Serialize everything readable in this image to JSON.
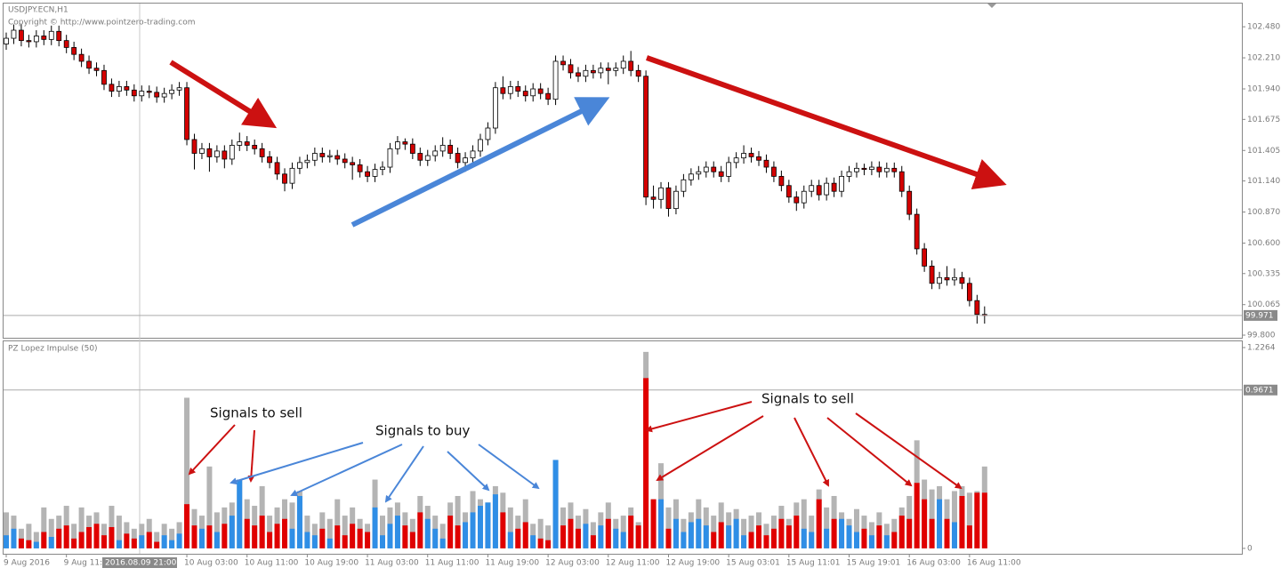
{
  "chart_data": [
    {
      "type": "candlestick",
      "title": "USDJPY.ECN,H1",
      "subtitle": "Copyright © http://www.pointzero-trading.com",
      "crosshair_label": "2016.08.09 21:00",
      "last_price": 99.971,
      "categories": [
        "9 Aug 2016",
        null,
        null,
        null,
        null,
        null,
        null,
        null,
        "9 Aug 11:00",
        null,
        null,
        null,
        null,
        null,
        null,
        null,
        null,
        null,
        null,
        null,
        null,
        null,
        null,
        null,
        "10 Aug 03:00",
        null,
        null,
        null,
        null,
        null,
        null,
        null,
        "10 Aug 11:00",
        null,
        null,
        null,
        null,
        null,
        null,
        null,
        "10 Aug 19:00",
        null,
        null,
        null,
        null,
        null,
        null,
        null,
        "11 Aug 03:00",
        null,
        null,
        null,
        null,
        null,
        null,
        null,
        "11 Aug 11:00",
        null,
        null,
        null,
        null,
        null,
        null,
        null,
        "11 Aug 19:00",
        null,
        null,
        null,
        null,
        null,
        null,
        null,
        "12 Aug 03:00",
        null,
        null,
        null,
        null,
        null,
        null,
        null,
        "12 Aug 11:00",
        null,
        null,
        null,
        null,
        null,
        null,
        null,
        "12 Aug 19:00",
        null,
        null,
        null,
        null,
        null,
        null,
        null,
        "15 Aug 03:01",
        null,
        null,
        null,
        null,
        null,
        null,
        null,
        "15 Aug 11:01",
        null,
        null,
        null,
        null,
        null,
        null,
        null,
        "15 Aug 19:01",
        null,
        null,
        null,
        null,
        null,
        null,
        null,
        "16 Aug 03:00",
        null,
        null,
        null,
        null,
        null,
        null,
        null,
        "16 Aug 11:00",
        null,
        null
      ],
      "open": [
        102.33,
        102.38,
        102.45,
        102.36,
        102.35,
        102.4,
        102.37,
        102.44,
        102.36,
        102.3,
        102.24,
        102.18,
        102.12,
        102.1,
        101.98,
        101.92,
        101.96,
        101.93,
        101.88,
        101.92,
        101.91,
        101.87,
        101.9,
        101.93,
        101.95,
        101.5,
        101.38,
        101.42,
        101.35,
        101.4,
        101.33,
        101.45,
        101.48,
        101.45,
        101.42,
        101.35,
        101.3,
        101.2,
        101.12,
        101.25,
        101.3,
        101.32,
        101.38,
        101.35,
        101.36,
        101.33,
        101.3,
        101.28,
        101.22,
        101.18,
        101.24,
        101.26,
        101.42,
        101.48,
        101.46,
        101.38,
        101.32,
        101.36,
        101.4,
        101.45,
        101.38,
        101.3,
        101.34,
        101.4,
        101.5,
        101.6,
        101.95,
        101.9,
        101.96,
        101.92,
        101.88,
        101.94,
        101.9,
        101.85,
        102.18,
        102.15,
        102.08,
        102.05,
        102.1,
        102.08,
        102.12,
        102.1,
        102.12,
        102.18,
        102.1,
        102.05,
        101.0,
        100.98,
        101.08,
        100.9,
        101.05,
        101.15,
        101.2,
        101.22,
        101.26,
        101.22,
        101.18,
        101.3,
        101.34,
        101.38,
        101.35,
        101.32,
        101.26,
        101.18,
        101.1,
        101.0,
        100.95,
        101.05,
        101.1,
        101.02,
        101.12,
        101.05,
        101.18,
        101.22,
        101.25,
        101.24,
        101.26,
        101.22,
        101.25,
        101.22,
        101.05,
        100.85,
        100.55,
        100.4,
        100.25,
        100.3,
        100.28,
        100.3,
        100.25,
        100.1,
        99.98
      ],
      "high": [
        102.43,
        102.5,
        102.5,
        102.41,
        102.45,
        102.45,
        102.49,
        102.49,
        102.41,
        102.35,
        102.29,
        102.23,
        102.17,
        102.15,
        102.03,
        102.01,
        102.01,
        101.98,
        101.97,
        101.97,
        101.96,
        101.95,
        101.98,
        102.0,
        102.0,
        101.55,
        101.47,
        101.47,
        101.45,
        101.45,
        101.5,
        101.56,
        101.53,
        101.5,
        101.47,
        101.4,
        101.35,
        101.25,
        101.3,
        101.35,
        101.37,
        101.43,
        101.43,
        101.41,
        101.41,
        101.38,
        101.35,
        101.33,
        101.27,
        101.29,
        101.31,
        101.47,
        101.53,
        101.51,
        101.51,
        101.43,
        101.41,
        101.45,
        101.52,
        101.5,
        101.43,
        101.39,
        101.45,
        101.55,
        101.65,
        102.0,
        102.05,
        102.01,
        102.01,
        101.97,
        101.99,
        101.99,
        101.95,
        102.23,
        102.23,
        102.2,
        102.13,
        102.15,
        102.15,
        102.17,
        102.17,
        102.17,
        102.23,
        102.27,
        102.15,
        102.1,
        101.1,
        101.13,
        101.13,
        101.1,
        101.2,
        101.25,
        101.27,
        101.31,
        101.31,
        101.27,
        101.35,
        101.39,
        101.45,
        101.43,
        101.4,
        101.37,
        101.31,
        101.23,
        101.15,
        101.05,
        101.1,
        101.15,
        101.15,
        101.17,
        101.17,
        101.23,
        101.27,
        101.3,
        101.29,
        101.31,
        101.31,
        101.3,
        101.3,
        101.27,
        101.1,
        100.9,
        100.6,
        100.45,
        100.35,
        100.4,
        100.38,
        100.35,
        100.3,
        100.15,
        100.05
      ],
      "low": [
        102.28,
        102.33,
        102.31,
        102.3,
        102.3,
        102.32,
        102.32,
        102.31,
        102.25,
        102.19,
        102.13,
        102.07,
        102.05,
        101.93,
        101.87,
        101.87,
        101.88,
        101.83,
        101.83,
        101.86,
        101.82,
        101.82,
        101.85,
        101.88,
        101.45,
        101.24,
        101.33,
        101.22,
        101.3,
        101.25,
        101.28,
        101.4,
        101.4,
        101.37,
        101.3,
        101.25,
        101.15,
        101.05,
        101.07,
        101.2,
        101.25,
        101.27,
        101.3,
        101.3,
        101.28,
        101.25,
        101.15,
        101.17,
        101.13,
        101.13,
        101.19,
        101.21,
        101.37,
        101.41,
        101.33,
        101.27,
        101.27,
        101.31,
        101.35,
        101.33,
        101.25,
        101.22,
        101.29,
        101.35,
        101.45,
        101.55,
        101.85,
        101.85,
        101.87,
        101.83,
        101.83,
        101.85,
        101.8,
        101.8,
        102.1,
        102.03,
        102.0,
        102.0,
        102.03,
        102.03,
        101.98,
        102.05,
        102.07,
        102.05,
        102.0,
        100.93,
        100.9,
        100.9,
        100.83,
        100.85,
        101.0,
        101.1,
        101.15,
        101.17,
        101.17,
        101.13,
        101.13,
        101.25,
        101.29,
        101.3,
        101.27,
        101.21,
        101.13,
        101.05,
        100.95,
        100.88,
        100.9,
        101.0,
        100.97,
        100.97,
        101.0,
        101.0,
        101.13,
        101.17,
        101.19,
        101.19,
        101.17,
        101.17,
        101.17,
        101.0,
        100.8,
        100.5,
        100.35,
        100.2,
        100.2,
        100.23,
        100.23,
        100.2,
        100.05,
        99.9,
        99.9
      ],
      "close": [
        102.38,
        102.45,
        102.36,
        102.35,
        102.4,
        102.37,
        102.44,
        102.36,
        102.3,
        102.24,
        102.18,
        102.12,
        102.1,
        101.98,
        101.92,
        101.96,
        101.93,
        101.88,
        101.92,
        101.91,
        101.87,
        101.9,
        101.93,
        101.95,
        101.5,
        101.38,
        101.42,
        101.35,
        101.4,
        101.33,
        101.45,
        101.48,
        101.45,
        101.42,
        101.35,
        101.3,
        101.2,
        101.12,
        101.25,
        101.3,
        101.32,
        101.38,
        101.35,
        101.36,
        101.33,
        101.3,
        101.28,
        101.22,
        101.18,
        101.24,
        101.26,
        101.42,
        101.48,
        101.46,
        101.38,
        101.32,
        101.36,
        101.4,
        101.45,
        101.38,
        101.3,
        101.34,
        101.4,
        101.5,
        101.6,
        101.95,
        101.9,
        101.96,
        101.92,
        101.88,
        101.94,
        101.9,
        101.85,
        102.18,
        102.15,
        102.08,
        102.05,
        102.1,
        102.08,
        102.12,
        102.1,
        102.12,
        102.18,
        102.1,
        102.05,
        101.0,
        100.98,
        101.08,
        100.9,
        101.05,
        101.15,
        101.2,
        101.22,
        101.26,
        101.22,
        101.18,
        101.3,
        101.34,
        101.38,
        101.35,
        101.32,
        101.26,
        101.18,
        101.1,
        101.0,
        100.95,
        101.05,
        101.1,
        101.02,
        101.12,
        101.05,
        101.18,
        101.22,
        101.25,
        101.24,
        101.26,
        101.22,
        101.25,
        101.22,
        101.05,
        100.85,
        100.55,
        100.4,
        100.25,
        100.3,
        100.28,
        100.3,
        100.25,
        100.1,
        99.98,
        99.97
      ],
      "up_color": "#ffffff",
      "down_color": "#d40000",
      "ylim": [
        99.777,
        102.674
      ],
      "yticks": [
        {
          "value": 102.48,
          "label": "102.480"
        },
        {
          "value": 102.21,
          "label": "102.210"
        },
        {
          "value": 101.94,
          "label": "101.940"
        },
        101.675,
        101.405,
        {
          "value": 101.14,
          "label": "101.140"
        },
        {
          "value": 100.87,
          "label": "100.870"
        },
        {
          "value": 100.6,
          "label": "100.600"
        },
        100.335,
        100.065,
        {
          "value": 99.8,
          "label": "99.800"
        }
      ]
    },
    {
      "type": "bar",
      "title": "PZ Lopez Impulse (50)",
      "series": [
        {
          "color": "#b4b4b4",
          "values": [
            0.22,
            0.2,
            0.12,
            0.15,
            0.1,
            0.25,
            0.18,
            0.2,
            0.26,
            0.15,
            0.25,
            0.2,
            0.22,
            0.15,
            0.26,
            0.2,
            0.16,
            0.12,
            0.15,
            0.18,
            0.1,
            0.15,
            0.12,
            0.16,
            0.92,
            0.24,
            0.2,
            0.5,
            0.22,
            0.25,
            0.28,
            0.42,
            0.3,
            0.26,
            0.38,
            0.2,
            0.25,
            0.3,
            0.28,
            0.35,
            0.2,
            0.15,
            0.22,
            0.18,
            0.3,
            0.2,
            0.25,
            0.18,
            0.15,
            0.42,
            0.2,
            0.25,
            0.28,
            0.22,
            0.18,
            0.32,
            0.26,
            0.2,
            0.15,
            0.28,
            0.32,
            0.22,
            0.35,
            0.3,
            0.28,
            0.38,
            0.34,
            0.25,
            0.2,
            0.3,
            0.15,
            0.18,
            0.14,
            0.54,
            0.25,
            0.28,
            0.2,
            0.24,
            0.16,
            0.22,
            0.28,
            0.18,
            0.2,
            0.25,
            0.16,
            1.2,
            0.3,
            0.52,
            0.25,
            0.3,
            0.18,
            0.22,
            0.3,
            0.25,
            0.2,
            0.28,
            0.22,
            0.24,
            0.18,
            0.2,
            0.22,
            0.15,
            0.2,
            0.26,
            0.18,
            0.28,
            0.3,
            0.2,
            0.36,
            0.25,
            0.32,
            0.22,
            0.18,
            0.24,
            0.2,
            0.16,
            0.22,
            0.15,
            0.18,
            0.25,
            0.32,
            0.66,
            0.42,
            0.36,
            0.38,
            0.3,
            0.35,
            0.38,
            0.34,
            0.35,
            0.5
          ]
        },
        {
          "color": "#e00000",
          "values": [
            null,
            null,
            0.06,
            0.05,
            null,
            0.1,
            null,
            0.12,
            0.14,
            0.06,
            0.1,
            0.13,
            0.15,
            0.08,
            0.13,
            null,
            0.09,
            0.06,
            null,
            0.1,
            0.04,
            null,
            null,
            null,
            0.27,
            0.14,
            null,
            0.14,
            null,
            0.15,
            null,
            null,
            0.18,
            0.14,
            0.2,
            0.1,
            0.15,
            0.18,
            null,
            null,
            null,
            null,
            0.12,
            null,
            0.14,
            0.08,
            0.15,
            0.12,
            0.1,
            null,
            null,
            null,
            null,
            0.14,
            0.1,
            0.22,
            null,
            null,
            null,
            0.2,
            0.14,
            null,
            null,
            null,
            null,
            null,
            0.22,
            null,
            0.12,
            0.16,
            null,
            0.06,
            0.05,
            null,
            0.14,
            0.18,
            0.12,
            null,
            0.08,
            null,
            0.18,
            null,
            null,
            0.2,
            0.14,
            1.04,
            0.3,
            null,
            0.12,
            null,
            null,
            null,
            null,
            null,
            0.1,
            0.16,
            null,
            null,
            null,
            0.1,
            0.14,
            0.08,
            0.12,
            0.18,
            0.14,
            0.2,
            null,
            null,
            0.3,
            null,
            0.18,
            null,
            null,
            null,
            0.12,
            null,
            0.14,
            null,
            0.1,
            0.2,
            0.18,
            0.4,
            0.3,
            0.18,
            null,
            0.18,
            null,
            0.32,
            0.14,
            0.34,
            0.34
          ]
        },
        {
          "color": "#2f8ee6",
          "values": [
            0.08,
            0.12,
            null,
            null,
            0.04,
            null,
            0.07,
            null,
            null,
            null,
            null,
            null,
            null,
            null,
            null,
            0.05,
            null,
            null,
            0.08,
            null,
            null,
            0.08,
            0.05,
            0.09,
            null,
            null,
            0.12,
            null,
            0.1,
            null,
            0.2,
            0.42,
            null,
            null,
            null,
            null,
            null,
            null,
            0.12,
            0.32,
            0.1,
            0.08,
            null,
            0.06,
            null,
            null,
            null,
            null,
            null,
            0.25,
            0.08,
            0.15,
            0.2,
            null,
            null,
            null,
            0.18,
            0.12,
            0.06,
            null,
            null,
            0.16,
            0.22,
            0.26,
            0.28,
            0.33,
            null,
            0.1,
            null,
            null,
            0.08,
            null,
            null,
            0.54,
            null,
            null,
            null,
            0.15,
            null,
            0.14,
            null,
            0.12,
            0.1,
            null,
            null,
            null,
            null,
            0.3,
            null,
            0.18,
            0.1,
            0.16,
            0.18,
            0.14,
            null,
            null,
            0.14,
            0.18,
            0.08,
            null,
            null,
            null,
            null,
            null,
            null,
            null,
            0.12,
            0.1,
            null,
            0.12,
            null,
            0.18,
            0.14,
            0.1,
            null,
            0.08,
            null,
            0.08,
            null,
            null,
            null,
            null,
            null,
            null,
            0.3,
            null,
            0.16,
            null,
            null,
            null,
            null
          ]
        }
      ],
      "level": 0.9671,
      "ylim": [
        -0.033,
        1.259
      ],
      "yticks": [
        0,
        1.2264
      ],
      "annotations": [
        "Signals to sell",
        "Signals to buy",
        "Signals to sell"
      ]
    }
  ]
}
